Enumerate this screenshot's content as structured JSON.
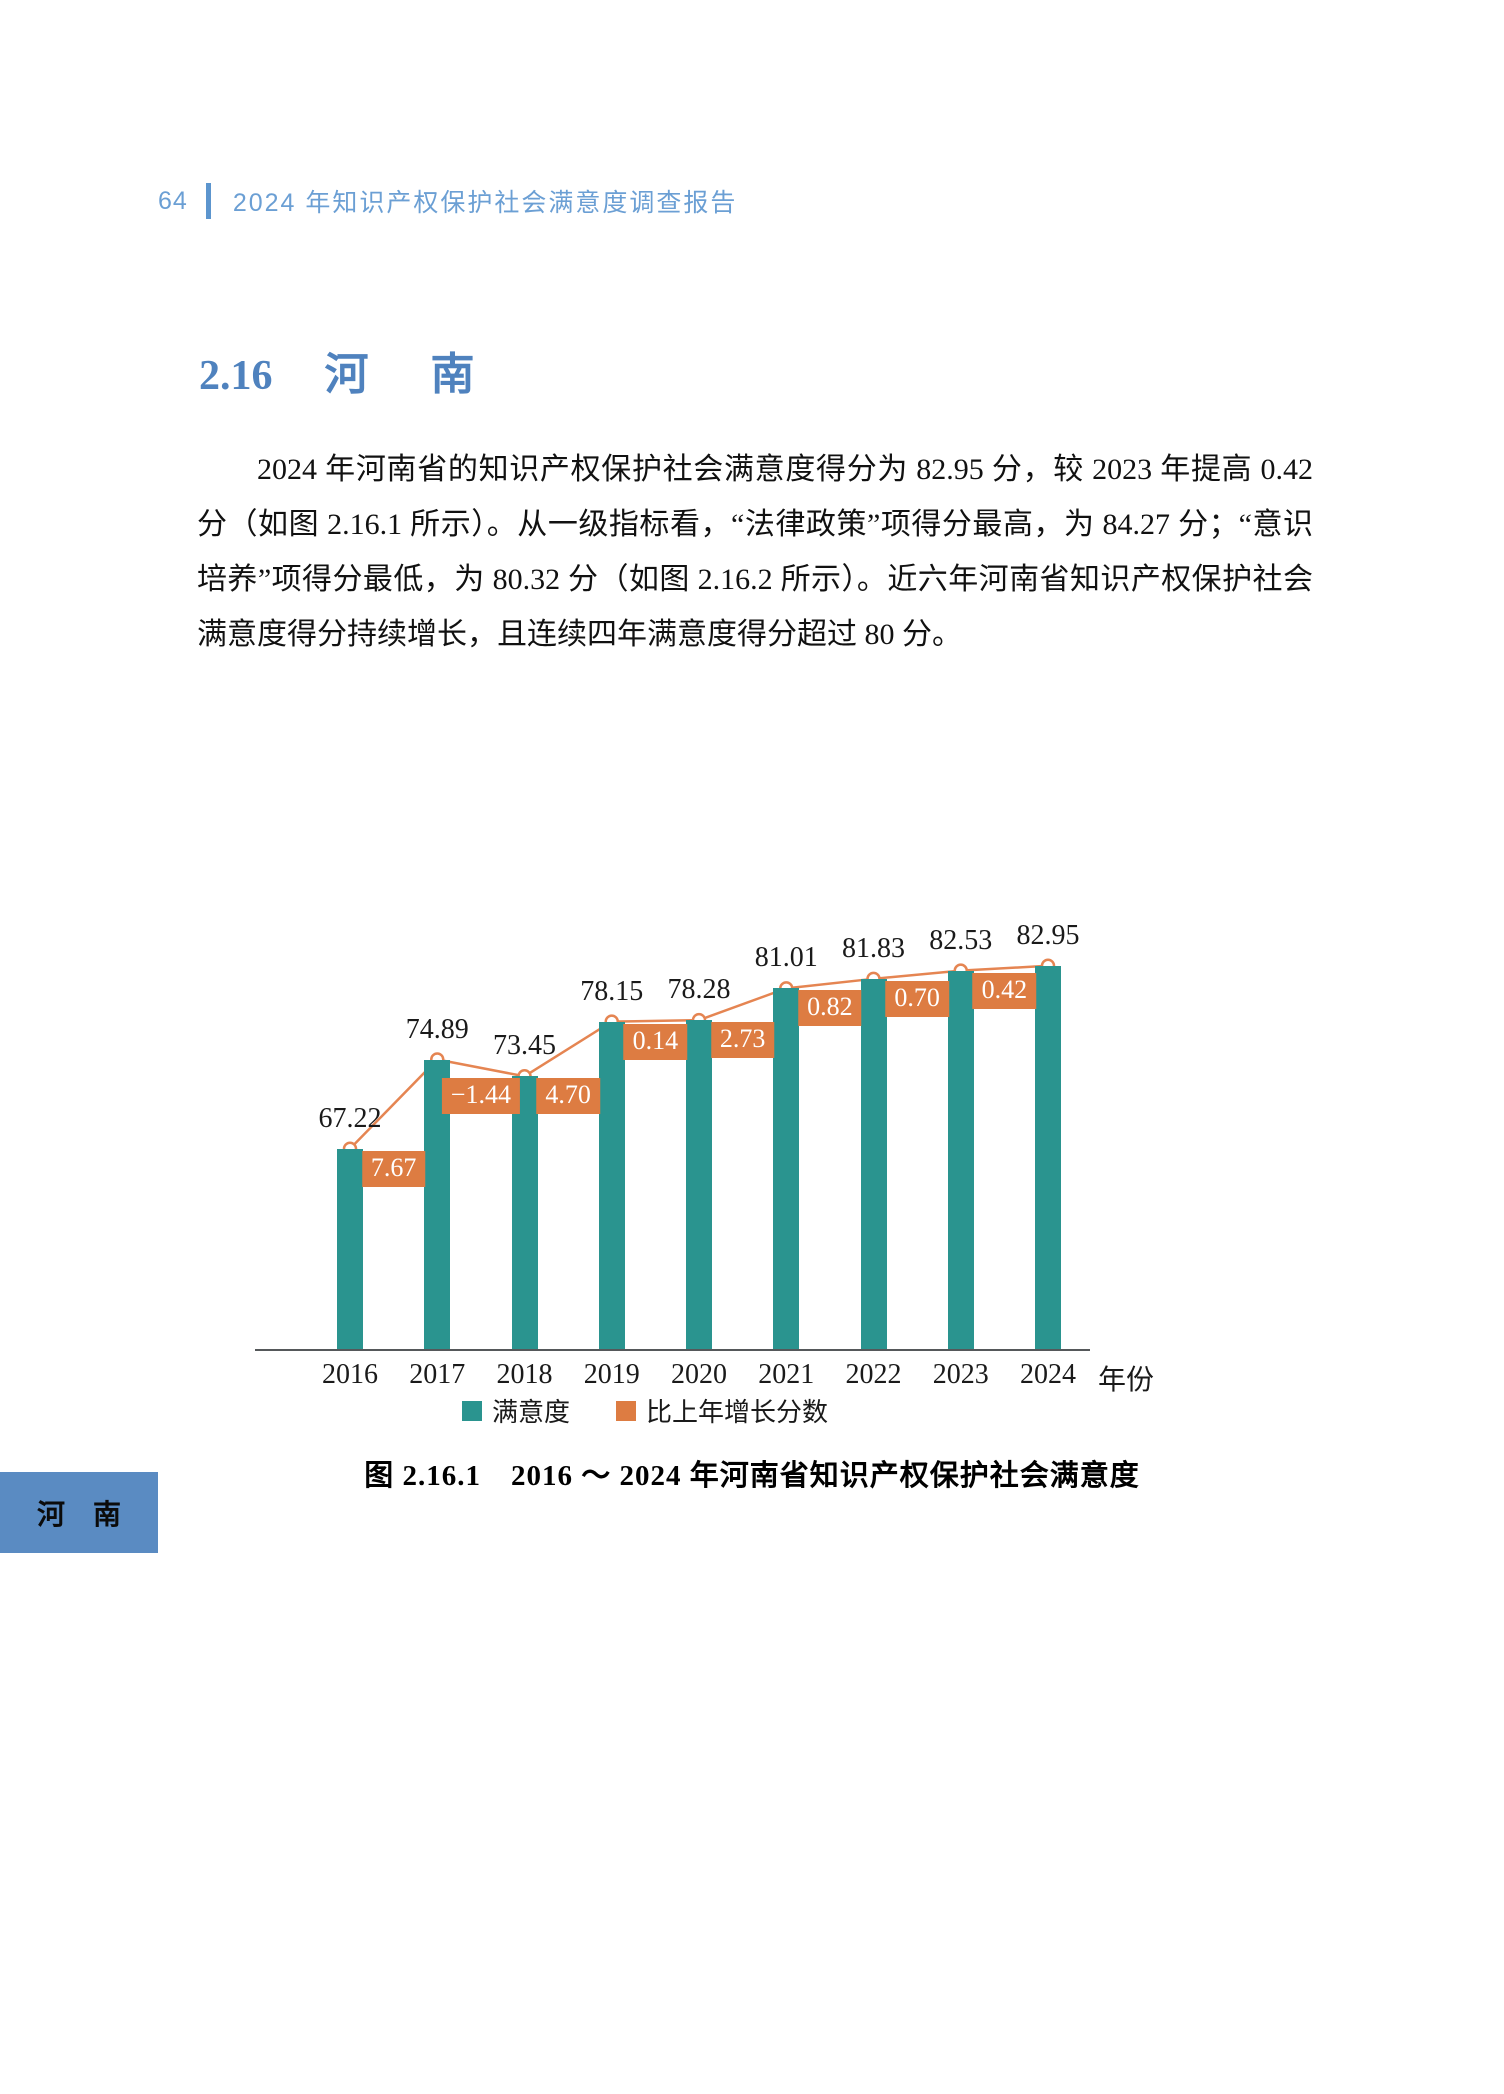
{
  "page": {
    "number": "64",
    "header_title": "2024 年知识产权保护社会满意度调查报告"
  },
  "section": {
    "number": "2.16",
    "title": "河南"
  },
  "paragraph": {
    "text": "2024 年河南省的知识产权保护社会满意度得分为 82.95 分，较 2023 年提高 0.42 分（如图 2.16.1 所示）。从一级指标看，“法律政策”项得分最高，为 84.27 分；“意识培养”项得分最低，为 80.32 分（如图 2.16.2 所示）。近六年河南省知识产权保护社会满意度得分持续增长，且连续四年满意度得分超过 80 分。"
  },
  "chart_data": {
    "type": "bar",
    "title": "图 2.16.1　2016 ～ 2024 年河南省知识产权保护社会满意度",
    "categories": [
      "2016",
      "2017",
      "2018",
      "2019",
      "2020",
      "2021",
      "2022",
      "2023",
      "2024"
    ],
    "series": [
      {
        "name": "满意度",
        "type": "bar",
        "values": [
          67.22,
          74.89,
          73.45,
          78.15,
          78.28,
          81.01,
          81.83,
          82.53,
          82.95
        ],
        "value_labels": [
          "67.22",
          "74.89",
          "73.45",
          "78.15",
          "78.28",
          "81.01",
          "81.83",
          "82.53",
          "82.95"
        ]
      },
      {
        "name": "比上年增长分数",
        "type": "line-label",
        "values": [
          7.67,
          -1.44,
          4.7,
          0.14,
          2.73,
          0.82,
          0.7,
          0.42
        ],
        "value_labels": [
          "7.67",
          "−1.44",
          "4.70",
          "0.14",
          "2.73",
          "0.82",
          "0.70",
          "0.42"
        ]
      }
    ],
    "xlabel": "年份",
    "ylabel": "",
    "ylim": [
      50,
      85
    ],
    "grid": false,
    "legend_position": "bottom",
    "colors": {
      "bar": "#2a948f",
      "growth_box": "#dd7c42",
      "line": "#e58552",
      "marker_fill": "#ffffff"
    }
  },
  "chart": {
    "caption": "图 2.16.1　2016 ～ 2024 年河南省知识产权保护社会满意度"
  },
  "side_tab": {
    "label": "河南"
  }
}
